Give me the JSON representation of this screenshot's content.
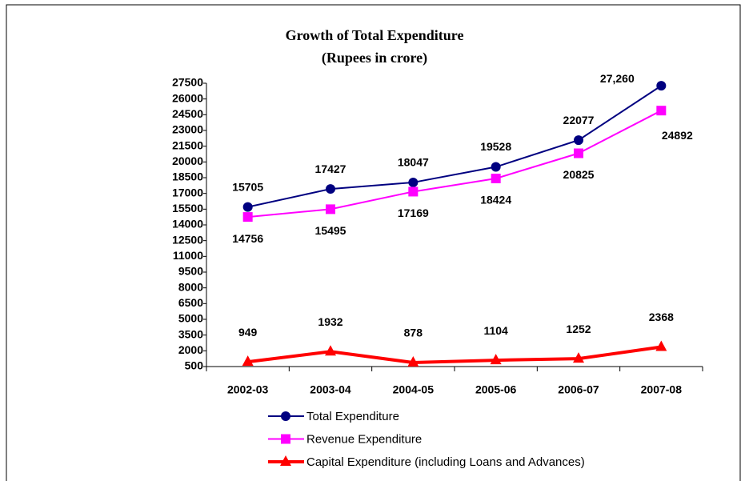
{
  "chart_data": {
    "type": "line",
    "title": "Growth of Total Expenditure",
    "subtitle": "(Rupees in crore)",
    "categories": [
      "2002-03",
      "2003-04",
      "2004-05",
      "2005-06",
      "2006-07",
      "2007-08"
    ],
    "series": [
      {
        "name": "Total Expenditure",
        "color": "#000080",
        "marker": "circle",
        "values": [
          15705,
          17427,
          18047,
          19528,
          22077,
          27260
        ],
        "value_labels": [
          "15705",
          "17427",
          "18047",
          "19528",
          "22077",
          "27,260"
        ]
      },
      {
        "name": "Revenue Expenditure",
        "color": "#ff00ff",
        "marker": "square",
        "values": [
          14756,
          15495,
          17169,
          18424,
          20825,
          24892
        ],
        "value_labels": [
          "14756",
          "15495",
          "17169",
          "18424",
          "20825",
          "24892"
        ]
      },
      {
        "name": "Capital Expenditure (including Loans and Advances)",
        "color": "#ff0000",
        "marker": "triangle",
        "values": [
          949,
          1932,
          878,
          1104,
          1252,
          2368
        ],
        "value_labels": [
          "949",
          "1932",
          "878",
          "1104",
          "1252",
          "2368"
        ]
      }
    ],
    "ylim": [
      500,
      27500
    ],
    "yticks": [
      500,
      2000,
      3500,
      5000,
      6500,
      8000,
      9500,
      11000,
      12500,
      14000,
      15500,
      17000,
      18500,
      20000,
      21500,
      23000,
      24500,
      26000,
      27500
    ],
    "grid": false
  }
}
